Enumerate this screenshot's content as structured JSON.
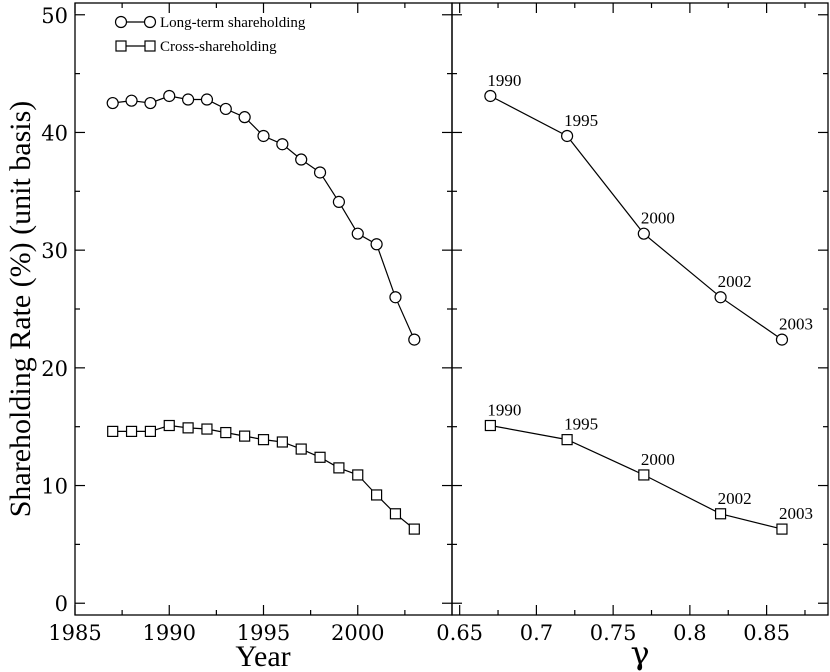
{
  "chart_data": [
    {
      "type": "line",
      "panel": "left",
      "xlabel": "Year",
      "ylabel": "Shareholding Rate (%) (unit basis)",
      "xlim": [
        1985,
        2005
      ],
      "ylim": [
        -1,
        51
      ],
      "xticks": [
        1985,
        1990,
        1995,
        2000
      ],
      "yticks": [
        0,
        10,
        20,
        30,
        40,
        50
      ],
      "grid": false,
      "legend_position": "top-left",
      "series": [
        {
          "name": "Long-term shareholding",
          "marker": "circle",
          "x": [
            1987,
            1988,
            1989,
            1990,
            1991,
            1992,
            1993,
            1994,
            1995,
            1996,
            1997,
            1998,
            1999,
            2000,
            2001,
            2002,
            2003
          ],
          "y": [
            42.5,
            42.7,
            42.5,
            43.1,
            42.8,
            42.8,
            42.0,
            41.3,
            39.7,
            39.0,
            37.7,
            36.6,
            34.1,
            31.4,
            30.5,
            26.0,
            22.4
          ]
        },
        {
          "name": "Cross-shareholding",
          "marker": "square",
          "x": [
            1987,
            1988,
            1989,
            1990,
            1991,
            1992,
            1993,
            1994,
            1995,
            1996,
            1997,
            1998,
            1999,
            2000,
            2001,
            2002,
            2003
          ],
          "y": [
            14.6,
            14.6,
            14.6,
            15.1,
            14.9,
            14.8,
            14.5,
            14.2,
            13.9,
            13.7,
            13.1,
            12.4,
            11.5,
            10.9,
            9.2,
            7.6,
            6.3
          ]
        }
      ]
    },
    {
      "type": "line",
      "panel": "right",
      "xlabel": "γ",
      "ylabel": "",
      "xlim": [
        0.645,
        0.89
      ],
      "ylim": [
        -1,
        51
      ],
      "xticks": [
        "0.65",
        "0.7",
        "0.75",
        "0.8",
        "0.85"
      ],
      "grid": false,
      "series": [
        {
          "name": "Long-term shareholding",
          "marker": "circle",
          "x": [
            0.67,
            0.72,
            0.77,
            0.82,
            0.86
          ],
          "y": [
            43.1,
            39.7,
            31.4,
            26.0,
            22.4
          ],
          "labels": [
            "1990",
            "1995",
            "2000",
            "2002",
            "2003"
          ]
        },
        {
          "name": "Cross-shareholding",
          "marker": "square",
          "x": [
            0.67,
            0.72,
            0.77,
            0.82,
            0.86
          ],
          "y": [
            15.1,
            13.9,
            10.9,
            7.6,
            6.3
          ],
          "labels": [
            "1990",
            "1995",
            "2000",
            "2002",
            "2003"
          ]
        }
      ]
    }
  ]
}
